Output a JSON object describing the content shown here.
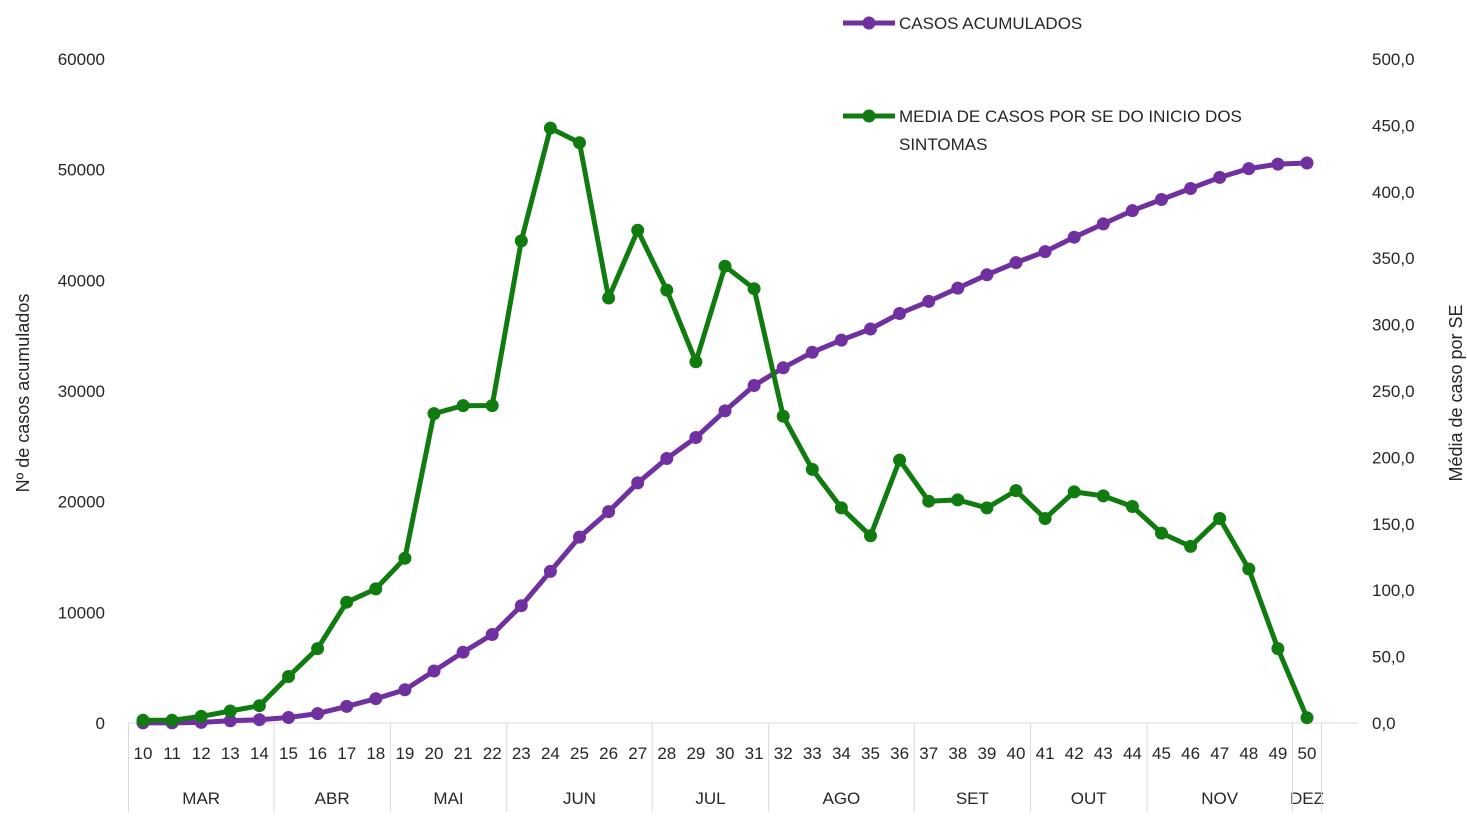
{
  "chart_data": {
    "type": "line",
    "x": [
      "10",
      "11",
      "12",
      "13",
      "14",
      "15",
      "16",
      "17",
      "18",
      "19",
      "20",
      "21",
      "22",
      "23",
      "24",
      "25",
      "26",
      "27",
      "28",
      "29",
      "30",
      "31",
      "32",
      "33",
      "34",
      "35",
      "36",
      "37",
      "38",
      "39",
      "40",
      "41",
      "42",
      "43",
      "44",
      "45",
      "46",
      "47",
      "48",
      "49",
      "50"
    ],
    "months": [
      {
        "label": "MAR",
        "from": "10",
        "to": "14"
      },
      {
        "label": "ABR",
        "from": "15",
        "to": "18"
      },
      {
        "label": "MAI",
        "from": "19",
        "to": "22"
      },
      {
        "label": "JUN",
        "from": "23",
        "to": "27"
      },
      {
        "label": "JUL",
        "from": "28",
        "to": "31"
      },
      {
        "label": "AGO",
        "from": "32",
        "to": "36"
      },
      {
        "label": "SET",
        "from": "37",
        "to": "40"
      },
      {
        "label": "OUT",
        "from": "41",
        "to": "44"
      },
      {
        "label": "NOV",
        "from": "45",
        "to": "49"
      },
      {
        "label": "DEZ",
        "from": "50",
        "to": "50"
      }
    ],
    "series": [
      {
        "name": "CASOS ACUMULADOS",
        "axis": "left",
        "color": "#7030a0",
        "values": [
          5,
          10,
          50,
          200,
          300,
          500,
          850,
          1500,
          2200,
          3000,
          4700,
          6400,
          8000,
          10600,
          13700,
          16800,
          19100,
          21700,
          23900,
          25800,
          28200,
          30500,
          32100,
          33500,
          34600,
          35600,
          37000,
          38100,
          39300,
          40500,
          41600,
          42600,
          43900,
          45100,
          46300,
          47300,
          48300,
          49300,
          50100,
          50500,
          50600
        ]
      },
      {
        "name": "MEDIA DE CASOS POR SE DO INICIO DOS SINTOMAS",
        "axis": "right",
        "color": "#107c10",
        "values": [
          2,
          2,
          5,
          9,
          13,
          35,
          56,
          91,
          101,
          124,
          233,
          239,
          239,
          363,
          448,
          437,
          320,
          371,
          326,
          272,
          344,
          327,
          231,
          191,
          162,
          141,
          198,
          167,
          168,
          162,
          175,
          154,
          174,
          171,
          163,
          143,
          133,
          154,
          116,
          56,
          4
        ]
      }
    ],
    "yleft": {
      "label": "Nº de casos acumulados",
      "ticks": [
        "0",
        "10000",
        "20000",
        "30000",
        "40000",
        "50000",
        "60000"
      ],
      "ylim": [
        0,
        60000
      ]
    },
    "yright": {
      "label": "Média de caso por SE",
      "ticks": [
        "0,0",
        "50,0",
        "100,0",
        "150,0",
        "200,0",
        "250,0",
        "300,0",
        "350,0",
        "400,0",
        "450,0",
        "500,0"
      ],
      "ylim": [
        0,
        500
      ]
    },
    "legend_position": "top-right",
    "grid": false
  }
}
